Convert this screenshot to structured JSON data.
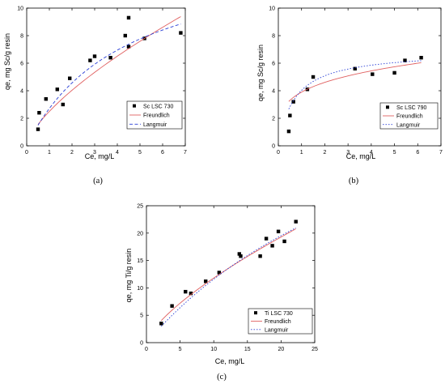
{
  "chart_data": [
    {
      "type": "scatter",
      "panel_label": "(a)",
      "xlabel": "Ce, mg/L",
      "ylabel": "qe, mg Sc/g resin",
      "xlim": [
        0,
        7
      ],
      "ylim": [
        0,
        10
      ],
      "xticks": [
        "0",
        "1",
        "2",
        "3",
        "4",
        "5",
        "6",
        "7"
      ],
      "yticks": [
        "0",
        "2",
        "4",
        "6",
        "8",
        "10"
      ],
      "legend_position": "lower-right",
      "series": [
        {
          "name": "Sc  LSC 730",
          "kind": "markers",
          "color": "#000000",
          "points": [
            [
              0.5,
              1.2
            ],
            [
              0.55,
              2.4
            ],
            [
              0.85,
              3.4
            ],
            [
              1.35,
              4.1
            ],
            [
              1.6,
              3.0
            ],
            [
              1.9,
              4.9
            ],
            [
              2.8,
              6.2
            ],
            [
              3.0,
              6.5
            ],
            [
              3.7,
              6.4
            ],
            [
              4.35,
              8.0
            ],
            [
              4.5,
              7.2
            ],
            [
              4.5,
              9.3
            ],
            [
              5.2,
              7.8
            ],
            [
              6.8,
              8.2
            ]
          ]
        },
        {
          "name": "Freundlich",
          "kind": "line",
          "color": "#e06060",
          "dash": "",
          "model": "freundlich",
          "params": {
            "k": 2.5,
            "n": 0.69
          }
        },
        {
          "name": "Langmuir",
          "kind": "line",
          "color": "#2a3fd6",
          "dash": "4,2.5",
          "model": "langmuir",
          "params": {
            "qmax": 14.5,
            "K": 0.23
          }
        }
      ]
    },
    {
      "type": "scatter",
      "panel_label": "(b)",
      "xlabel": "Ce, mg/L",
      "ylabel": "qe, mg Sc/g resin",
      "xlim": [
        0,
        7
      ],
      "ylim": [
        0,
        10
      ],
      "xticks": [
        "0",
        "1",
        "2",
        "3",
        "4",
        "5",
        "6",
        "7"
      ],
      "yticks": [
        "0",
        "2",
        "4",
        "6",
        "8",
        "10"
      ],
      "legend_position": "lower-right",
      "series": [
        {
          "name": "Sc  LSC 790",
          "kind": "markers",
          "color": "#000000",
          "points": [
            [
              0.45,
              1.05
            ],
            [
              0.5,
              2.2
            ],
            [
              0.65,
              3.2
            ],
            [
              1.25,
              4.1
            ],
            [
              1.5,
              5.0
            ],
            [
              3.3,
              5.6
            ],
            [
              4.05,
              5.2
            ],
            [
              5.0,
              5.3
            ],
            [
              5.45,
              6.2
            ],
            [
              6.15,
              6.4
            ]
          ]
        },
        {
          "name": "Freundlich",
          "kind": "line",
          "color": "#e06060",
          "dash": "",
          "model": "freundlich",
          "params": {
            "k": 3.9,
            "n": 0.24
          }
        },
        {
          "name": "Langmuir",
          "kind": "line",
          "color": "#2a3fd6",
          "dash": "1.5,2",
          "model": "langmuir",
          "params": {
            "qmax": 6.9,
            "K": 1.4
          }
        }
      ]
    },
    {
      "type": "scatter",
      "panel_label": "(c)",
      "xlabel": "Ce, mg/L",
      "ylabel": "qe, mg Ti/g resin",
      "xlim": [
        0,
        25
      ],
      "ylim": [
        0,
        25
      ],
      "xticks": [
        "0",
        "5",
        "10",
        "15",
        "20",
        "25"
      ],
      "yticks": [
        "0",
        "5",
        "10",
        "15",
        "20",
        "25"
      ],
      "legend_position": "lower-right",
      "series": [
        {
          "name": "Ti LSC 730",
          "kind": "markers",
          "color": "#000000",
          "points": [
            [
              2.2,
              3.5
            ],
            [
              3.8,
              6.7
            ],
            [
              5.8,
              9.3
            ],
            [
              6.6,
              9.0
            ],
            [
              8.8,
              11.2
            ],
            [
              10.8,
              12.8
            ],
            [
              13.8,
              16.2
            ],
            [
              14.0,
              15.8
            ],
            [
              16.9,
              15.8
            ],
            [
              17.8,
              19.0
            ],
            [
              18.7,
              17.7
            ],
            [
              19.6,
              20.3
            ],
            [
              20.5,
              18.5
            ],
            [
              22.2,
              22.1
            ]
          ]
        },
        {
          "name": "Freundlich",
          "kind": "line",
          "color": "#e06060",
          "dash": "",
          "model": "freundlich",
          "params": {
            "k": 2.3,
            "n": 0.71
          }
        },
        {
          "name": "Langmuir",
          "kind": "line",
          "color": "#2a3fd6",
          "dash": "1.5,2",
          "model": "langmuir",
          "params": {
            "qmax": 62,
            "K": 0.023
          }
        }
      ]
    }
  ]
}
